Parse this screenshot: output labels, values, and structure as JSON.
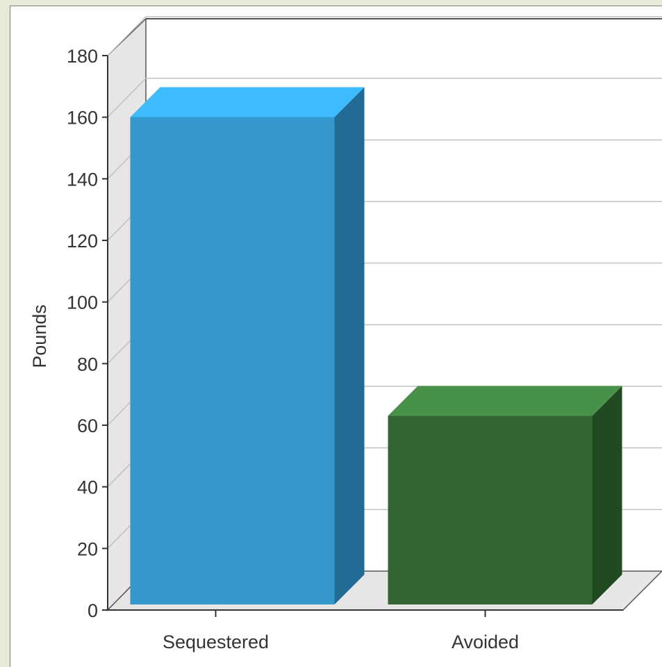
{
  "chart_data": {
    "type": "bar",
    "style": "3d",
    "categories": [
      "Sequestered",
      "Avoided"
    ],
    "values": [
      165,
      68
    ],
    "ylabel": "Pounds",
    "ylim": [
      0,
      180
    ],
    "yticks": [
      0,
      20,
      40,
      60,
      80,
      100,
      120,
      140,
      160,
      180
    ],
    "grid": true,
    "colors": [
      {
        "front": "#3598cc",
        "top": "#3dbcff",
        "side": "#216b94"
      },
      {
        "front": "#336633",
        "top": "#489148",
        "side": "#224a22"
      }
    ]
  }
}
